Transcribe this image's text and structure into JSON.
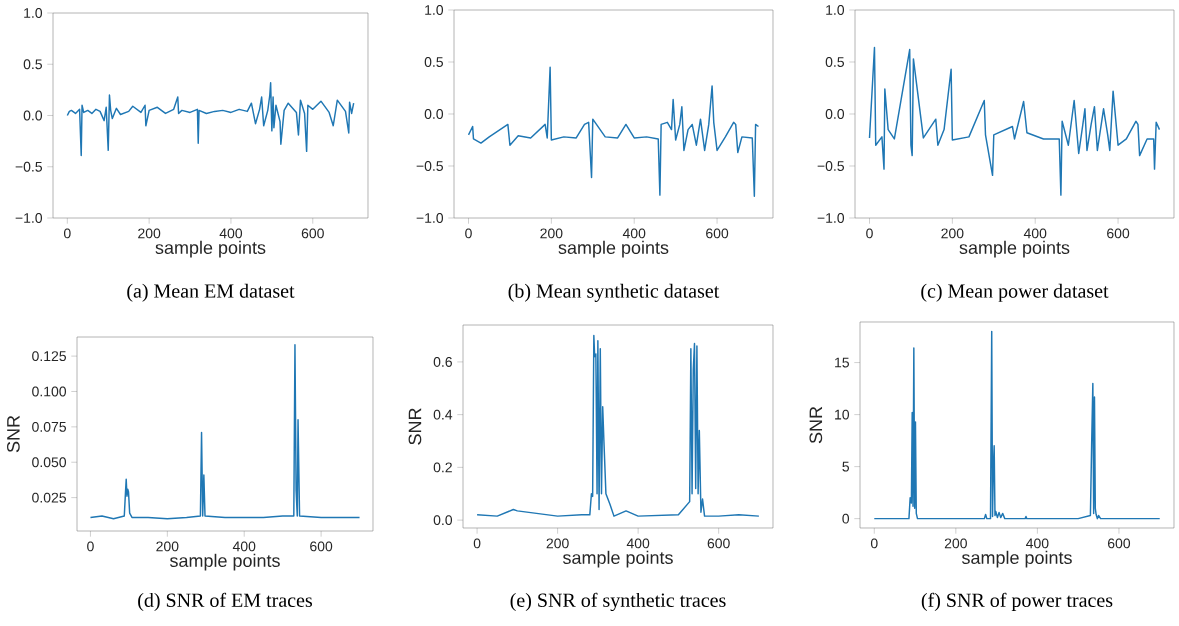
{
  "chart_data": [
    {
      "type": "line",
      "title": "(a) Mean EM dataset",
      "xlabel": "sample points",
      "color": "#1f77b4",
      "marker": "none",
      "xlim": [
        -35,
        735
      ],
      "ylim": [
        -1,
        1
      ],
      "xticks": [
        0,
        200,
        400,
        600
      ],
      "yticks": [
        {
          "value": -1,
          "label": "−1.0"
        },
        {
          "value": -0.5,
          "label": "−0.5"
        },
        {
          "value": 0,
          "label": "0.0"
        },
        {
          "value": 0.5,
          "label": "0.5"
        },
        {
          "value": 1,
          "label": "1.0"
        }
      ],
      "x": [
        0,
        5,
        10,
        20,
        30,
        34,
        36,
        40,
        50,
        60,
        70,
        80,
        90,
        95,
        100,
        103,
        106,
        110,
        120,
        130,
        150,
        160,
        180,
        190,
        192,
        200,
        220,
        240,
        260,
        270,
        272,
        280,
        300,
        318,
        320,
        322,
        340,
        360,
        380,
        400,
        420,
        440,
        450,
        460,
        470,
        475,
        480,
        490,
        495,
        497,
        500,
        503,
        505,
        510,
        520,
        522,
        530,
        540,
        560,
        565,
        570,
        580,
        585,
        588,
        600,
        620,
        640,
        650,
        660,
        680,
        688,
        690,
        695,
        700
      ],
      "values": [
        0,
        0.04,
        0.05,
        0.02,
        0.06,
        -0.39,
        0.1,
        0.03,
        0.05,
        0.02,
        0.06,
        0.04,
        -0.05,
        0.08,
        -0.34,
        0.2,
        0.05,
        -0.03,
        0.07,
        0.01,
        0.04,
        0.09,
        0.03,
        0.1,
        -0.1,
        0.05,
        0.08,
        0.02,
        0.06,
        0.18,
        0.02,
        0.05,
        0.03,
        0.06,
        -0.27,
        0.05,
        0.02,
        0.04,
        0.05,
        0.03,
        0.06,
        0.04,
        0.12,
        -0.08,
        0.06,
        0.18,
        -0.1,
        0.05,
        0.2,
        0.32,
        -0.15,
        0.18,
        -0.12,
        0.1,
        -0.06,
        -0.28,
        0.05,
        0.12,
        0.03,
        -0.19,
        0.15,
        0.02,
        -0.35,
        0.1,
        0.06,
        0.14,
        0.03,
        -0.1,
        0.15,
        0.04,
        -0.17,
        0.13,
        0.02,
        0.12
      ]
    },
    {
      "type": "line",
      "title": "(b) Mean synthetic dataset",
      "xlabel": "sample points",
      "color": "#1f77b4",
      "marker": "none",
      "xlim": [
        -35,
        735
      ],
      "ylim": [
        -1,
        1
      ],
      "xticks": [
        0,
        200,
        400,
        600
      ],
      "yticks": [
        {
          "value": -1,
          "label": "−1.0"
        },
        {
          "value": -0.5,
          "label": "−0.5"
        },
        {
          "value": 0,
          "label": "0.0"
        },
        {
          "value": 0.5,
          "label": "0.5"
        },
        {
          "value": 1,
          "label": "1.0"
        }
      ],
      "x": [
        0,
        10,
        12,
        30,
        50,
        95,
        100,
        120,
        150,
        185,
        190,
        197,
        200,
        230,
        260,
        280,
        290,
        297,
        300,
        330,
        360,
        380,
        400,
        430,
        458,
        462,
        465,
        480,
        490,
        494,
        500,
        510,
        515,
        520,
        530,
        540,
        550,
        560,
        570,
        580,
        588,
        592,
        600,
        620,
        640,
        645,
        650,
        660,
        685,
        690,
        693,
        700
      ],
      "values": [
        -0.2,
        -0.12,
        -0.24,
        -0.28,
        -0.22,
        -0.1,
        -0.3,
        -0.21,
        -0.23,
        -0.1,
        -0.23,
        0.45,
        -0.25,
        -0.22,
        -0.23,
        -0.1,
        -0.08,
        -0.61,
        -0.05,
        -0.22,
        -0.23,
        -0.1,
        -0.23,
        -0.22,
        -0.24,
        -0.78,
        -0.1,
        -0.08,
        -0.15,
        0.14,
        -0.25,
        -0.1,
        0.07,
        -0.35,
        -0.15,
        -0.1,
        -0.3,
        -0.05,
        -0.35,
        -0.1,
        0.27,
        -0.08,
        -0.35,
        -0.22,
        -0.08,
        -0.1,
        -0.37,
        -0.22,
        -0.23,
        -0.79,
        -0.1,
        -0.12
      ]
    },
    {
      "type": "line",
      "title": "(c) Mean power dataset",
      "xlabel": "sample points",
      "color": "#1f77b4",
      "marker": "none",
      "xlim": [
        -35,
        735
      ],
      "ylim": [
        -1,
        1
      ],
      "xticks": [
        0,
        200,
        400,
        600
      ],
      "yticks": [
        {
          "value": -1,
          "label": "−1.0"
        },
        {
          "value": -0.5,
          "label": "−0.5"
        },
        {
          "value": 0,
          "label": "0.0"
        },
        {
          "value": 0.5,
          "label": "0.5"
        },
        {
          "value": 1,
          "label": "1.0"
        }
      ],
      "x": [
        0,
        12,
        15,
        30,
        35,
        37,
        45,
        60,
        97,
        100,
        103,
        106,
        130,
        160,
        165,
        180,
        197,
        200,
        240,
        277,
        280,
        297,
        300,
        345,
        350,
        372,
        380,
        420,
        458,
        462,
        465,
        480,
        494,
        505,
        515,
        520,
        525,
        535,
        543,
        550,
        565,
        575,
        580,
        588,
        600,
        620,
        643,
        648,
        652,
        670,
        686,
        688,
        692,
        700
      ],
      "values": [
        -0.23,
        0.64,
        -0.3,
        -0.22,
        -0.53,
        0.24,
        -0.15,
        -0.24,
        0.62,
        -0.3,
        -0.4,
        0.53,
        -0.23,
        -0.05,
        -0.3,
        -0.15,
        0.43,
        -0.25,
        -0.22,
        0.13,
        -0.2,
        -0.59,
        -0.2,
        -0.12,
        -0.24,
        0.12,
        -0.18,
        -0.24,
        -0.24,
        -0.78,
        -0.07,
        -0.3,
        0.13,
        -0.38,
        -0.1,
        0.05,
        -0.35,
        -0.1,
        0.07,
        -0.35,
        0.05,
        -0.2,
        -0.35,
        0.22,
        -0.3,
        -0.24,
        -0.07,
        -0.1,
        -0.4,
        -0.24,
        -0.24,
        -0.53,
        -0.08,
        -0.15
      ]
    },
    {
      "type": "line",
      "title": "(d) SNR of EM traces",
      "xlabel": "sample points",
      "ylabel": "SNR",
      "color": "#1f77b4",
      "marker": "none",
      "xlim": [
        -35,
        735
      ],
      "ylim": [
        0.0014,
        0.1385
      ],
      "xticks": [
        0,
        200,
        400,
        600
      ],
      "yticks": [
        0.025,
        {
          "value": 0.05,
          "label": "0.050"
        },
        0.075,
        {
          "value": 0.1,
          "label": "0.100"
        },
        0.125
      ],
      "x": [
        0,
        30,
        60,
        88,
        91,
        93,
        95,
        97,
        99,
        102,
        108,
        150,
        200,
        250,
        286,
        289,
        292,
        295,
        298,
        350,
        400,
        450,
        500,
        529,
        532,
        535,
        538,
        540,
        544,
        600,
        650,
        700
      ],
      "values": [
        0.011,
        0.012,
        0.01,
        0.012,
        0.028,
        0.038,
        0.026,
        0.031,
        0.029,
        0.014,
        0.011,
        0.011,
        0.01,
        0.011,
        0.012,
        0.071,
        0.012,
        0.041,
        0.012,
        0.011,
        0.011,
        0.011,
        0.012,
        0.012,
        0.133,
        0.03,
        0.012,
        0.08,
        0.012,
        0.011,
        0.011,
        0.011
      ]
    },
    {
      "type": "line",
      "title": "(e) SNR of synthetic traces",
      "xlabel": "sample points",
      "ylabel": "SNR",
      "color": "#1f77b4",
      "marker": "none",
      "xlim": [
        -35,
        735
      ],
      "ylim": [
        -0.03,
        0.74
      ],
      "xticks": [
        0,
        200,
        400,
        600
      ],
      "yticks": [
        {
          "value": 0,
          "label": "0.0"
        },
        {
          "value": 0.2,
          "label": "0.2"
        },
        {
          "value": 0.4,
          "label": "0.4"
        },
        {
          "value": 0.6,
          "label": "0.6"
        }
      ],
      "x": [
        0,
        50,
        90,
        100,
        200,
        260,
        280,
        284,
        287,
        290,
        292,
        295,
        298,
        300,
        303,
        306,
        309,
        312,
        315,
        320,
        330,
        340,
        370,
        400,
        500,
        528,
        531,
        534,
        537,
        540,
        543,
        546,
        549,
        552,
        556,
        560,
        565,
        600,
        650,
        700
      ],
      "values": [
        0.02,
        0.015,
        0.04,
        0.035,
        0.015,
        0.02,
        0.02,
        0.1,
        0.09,
        0.7,
        0.62,
        0.63,
        0.1,
        0.68,
        0.04,
        0.65,
        0.1,
        0.43,
        0.3,
        0.1,
        0.06,
        0.015,
        0.035,
        0.015,
        0.02,
        0.07,
        0.65,
        0.1,
        0.57,
        0.67,
        0.12,
        0.66,
        0.1,
        0.34,
        0.03,
        0.08,
        0.015,
        0.015,
        0.02,
        0.015
      ]
    },
    {
      "type": "line",
      "title": "(f) SNR of power traces",
      "xlabel": "sample points",
      "ylabel": "SNR",
      "color": "#1f77b4",
      "marker": "none",
      "xlim": [
        -35,
        735
      ],
      "ylim": [
        -0.9,
        18.9
      ],
      "xticks": [
        0,
        200,
        400,
        600
      ],
      "yticks": [
        0,
        5,
        10,
        15
      ],
      "x": [
        0,
        85,
        88,
        91,
        93,
        95,
        97,
        99,
        101,
        103,
        106,
        110,
        200,
        270,
        273,
        276,
        285,
        288,
        290,
        292,
        294,
        296,
        298,
        302,
        306,
        310,
        315,
        320,
        370,
        372,
        374,
        500,
        530,
        533,
        536,
        538,
        540,
        542,
        544,
        547,
        550,
        555,
        600,
        700
      ],
      "values": [
        0,
        0,
        2,
        1.5,
        10.2,
        1.2,
        16.4,
        1,
        9.3,
        0.5,
        0,
        0,
        0,
        0,
        0.4,
        0,
        0,
        18,
        0.2,
        5,
        7,
        0.3,
        0.7,
        0.1,
        0.6,
        0.1,
        0.5,
        0,
        0,
        0.2,
        0,
        0,
        0.3,
        7,
        13,
        0.5,
        11.7,
        1,
        0.4,
        0,
        0.3,
        0,
        0,
        0
      ]
    }
  ]
}
